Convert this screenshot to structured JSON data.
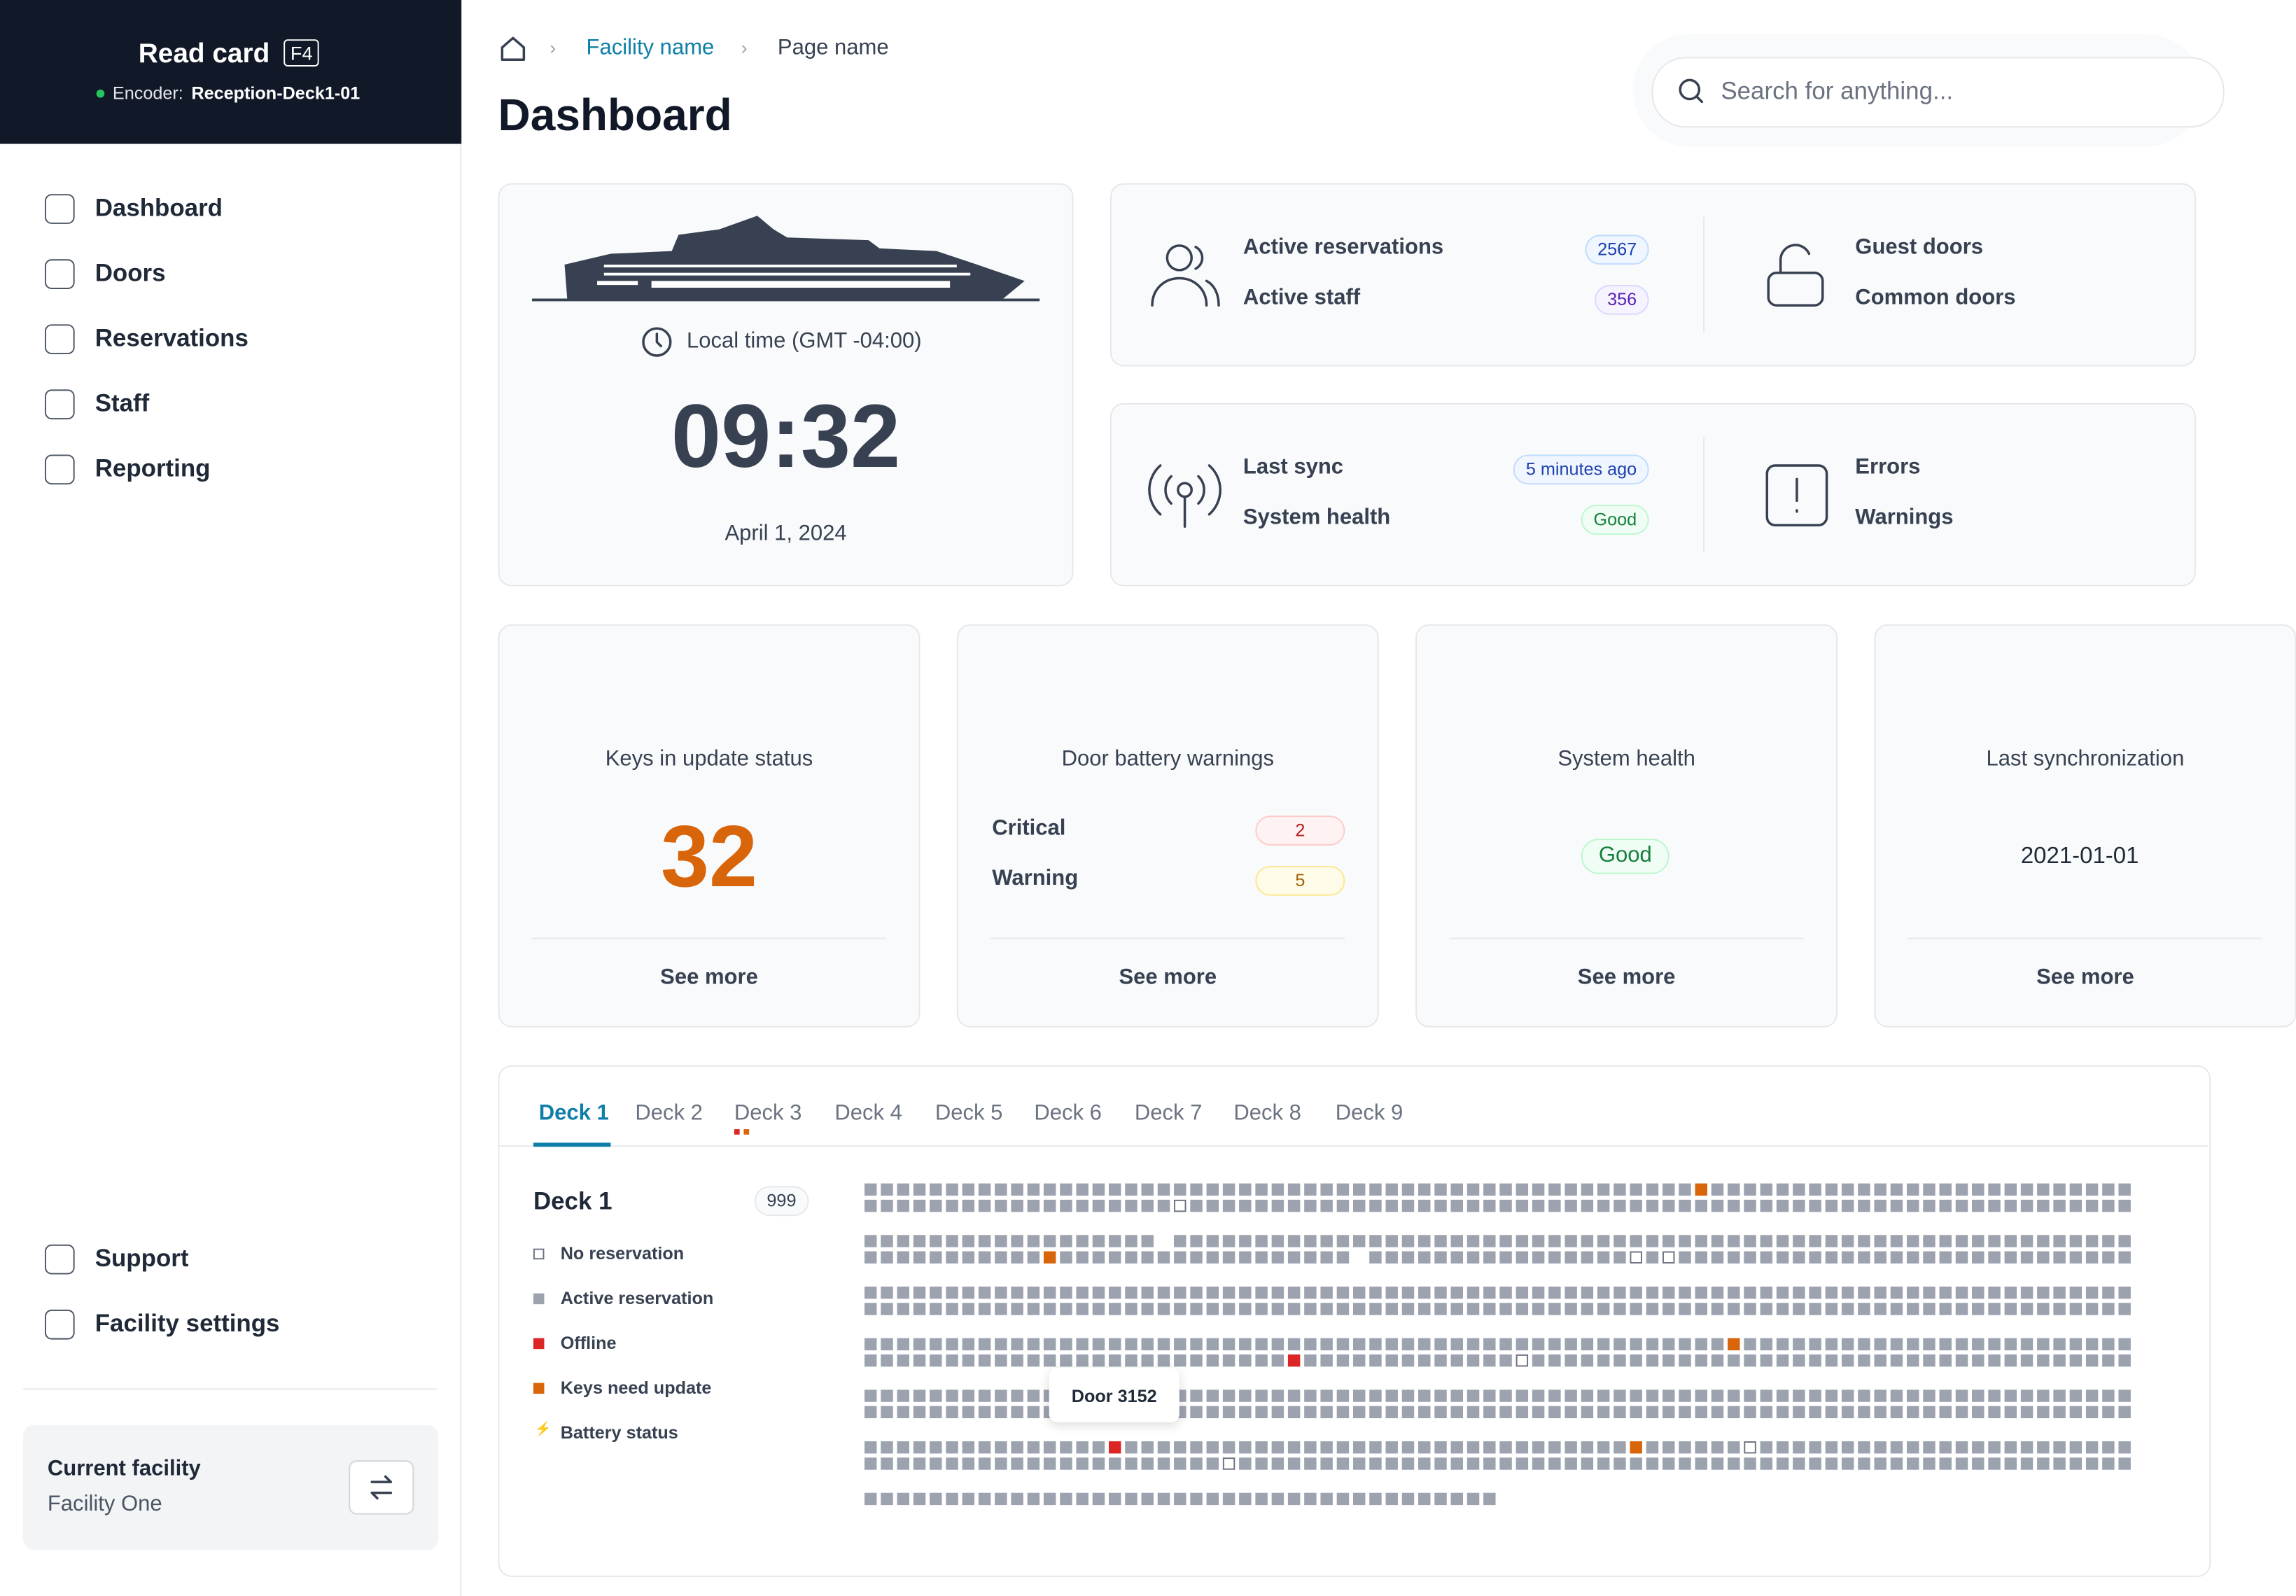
{
  "header": {
    "read_card": "Read card",
    "shortcut": "F4",
    "encoder_label": "Encoder:",
    "encoder_name": "Reception-Deck1-01"
  },
  "nav": [
    "Dashboard",
    "Doors",
    "Reservations",
    "Staff",
    "Reporting"
  ],
  "nav_bottom": [
    "Support",
    "Facility settings"
  ],
  "facility": {
    "label": "Current facility",
    "name": "Facility One"
  },
  "breadcrumb": [
    "Facility name",
    "Page name"
  ],
  "page_title": "Dashboard",
  "search_placeholder": "Search for anything...",
  "clock": {
    "label": "Local time (GMT -04:00)",
    "time": "09:32",
    "date": "April 1, 2024"
  },
  "summary": [
    {
      "left": [
        {
          "label": "Active reservations",
          "badge": 2567
        },
        {
          "label": "Active staff",
          "badge": 356
        }
      ],
      "right": [
        {
          "label": "Guest doors"
        },
        {
          "label": "Common doors"
        }
      ]
    },
    {
      "left": [
        {
          "label": "Last sync",
          "badge": "5 minutes ago"
        },
        {
          "label": "System health",
          "badge": "Good"
        }
      ],
      "right": [
        {
          "label": "Errors"
        },
        {
          "label": "Warnings"
        }
      ]
    }
  ],
  "cards": [
    {
      "title": "Keys in update status",
      "value": 32,
      "link": "See more"
    },
    {
      "title": "Door battery warnings",
      "rows": [
        {
          "label": "Critical",
          "badge": 2
        },
        {
          "label": "Warning",
          "badge": 5
        }
      ],
      "link": "See more"
    },
    {
      "title": "System health",
      "badge": "Good",
      "link": "See more"
    },
    {
      "title": "Last synchronization",
      "date": "2021-01-01",
      "link": "See more"
    }
  ],
  "tabs": [
    "Deck 1",
    "Deck 2",
    "Deck 3",
    "Deck 4",
    "Deck 5",
    "Deck 6",
    "Deck 7",
    "Deck 8",
    "Deck 9"
  ],
  "deck": {
    "title": "Deck 1",
    "count": 999,
    "legend": [
      "No reservation",
      "Active reservation",
      "Offline",
      "Keys need update",
      "Battery status"
    ],
    "tooltip": "Door 3152"
  }
}
